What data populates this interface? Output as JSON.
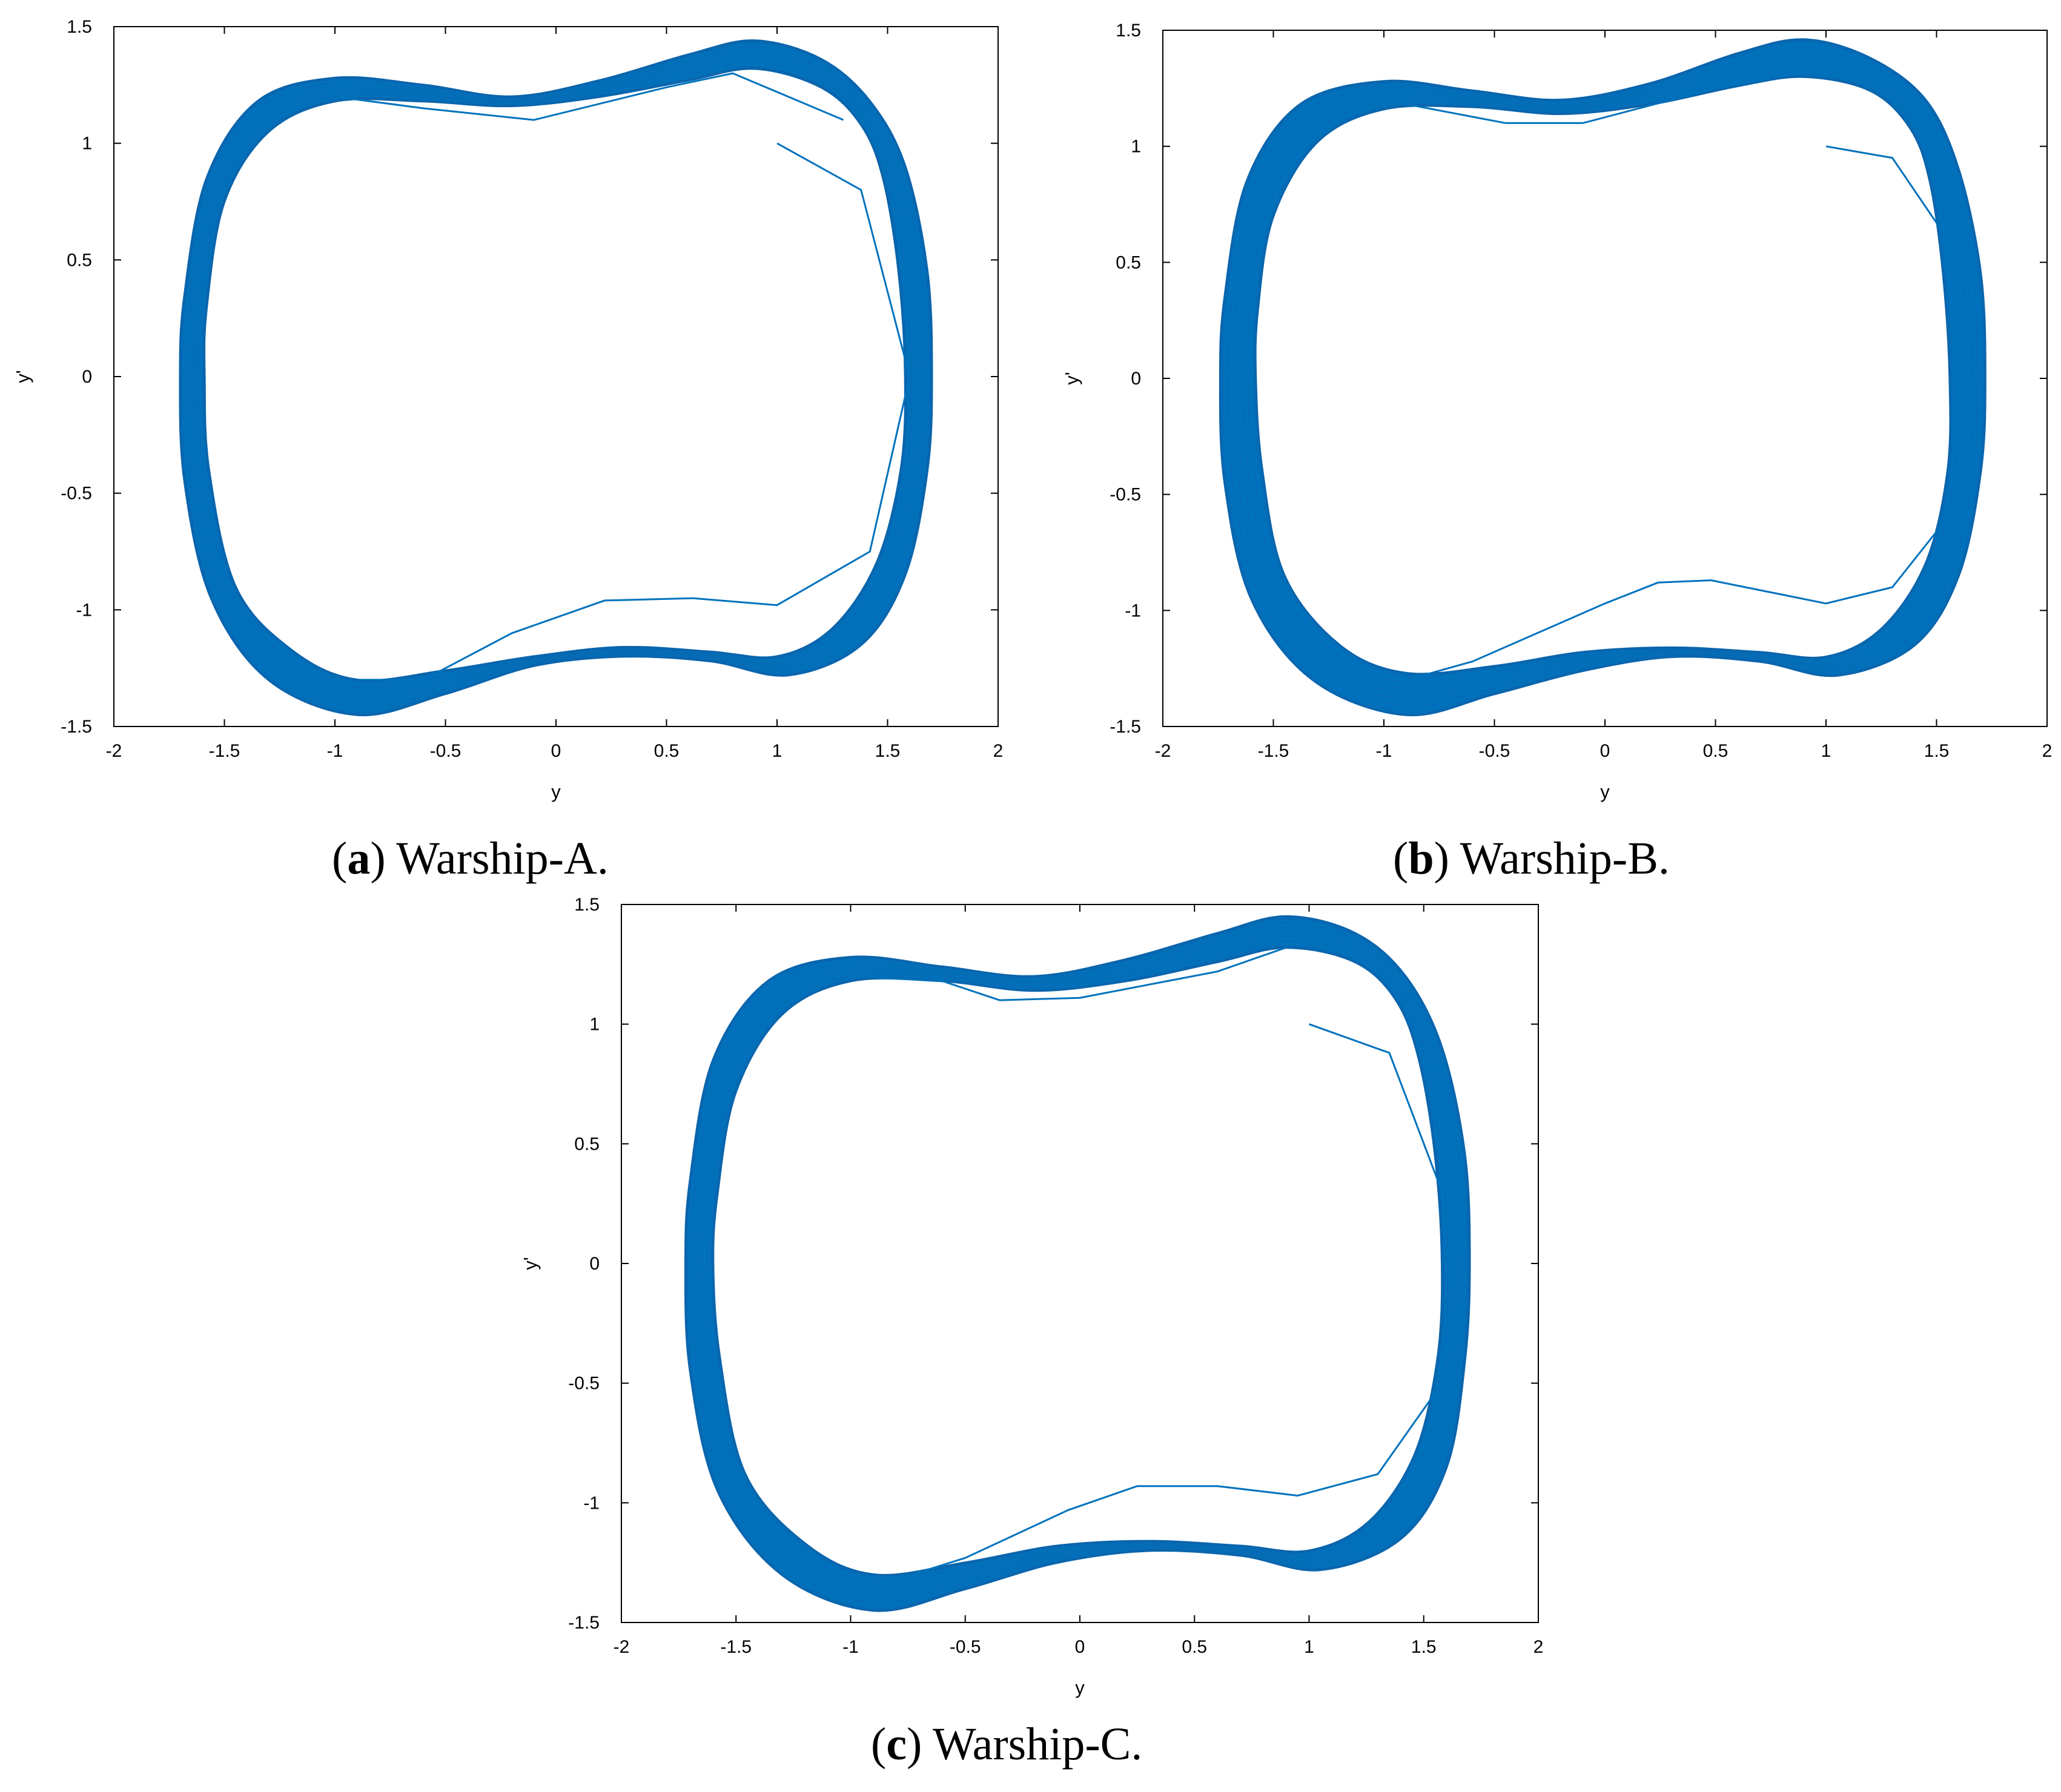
{
  "figures": [
    {
      "id": "a",
      "caption_letter": "a",
      "caption_text": "Warship-A.",
      "chart_data": {
        "type": "line",
        "title": "",
        "xlabel": "y",
        "ylabel": "y'",
        "xlim": [
          -2,
          2
        ],
        "ylim": [
          -1.5,
          1.5
        ],
        "xticks": [
          -2,
          -1.5,
          -1,
          -0.5,
          0,
          0.5,
          1,
          1.5,
          2
        ],
        "yticks": [
          -1.5,
          -1,
          -0.5,
          0,
          0.5,
          1,
          1.5
        ],
        "xtick_labels": [
          "-2",
          "-1.5",
          "-1",
          "-0.5",
          "0",
          "0.5",
          "1",
          "1.5",
          "2"
        ],
        "ytick_labels": [
          "-1.5",
          "-1",
          "-0.5",
          "0",
          "0.5",
          "1",
          "1.5"
        ],
        "grid": false,
        "color": "#0072bd",
        "limit_cycle": {
          "inner": [
            [
              1.58,
              0.0
            ],
            [
              1.55,
              0.45
            ],
            [
              1.48,
              0.85
            ],
            [
              1.38,
              1.08
            ],
            [
              1.2,
              1.24
            ],
            [
              0.9,
              1.32
            ],
            [
              0.6,
              1.27
            ],
            [
              0.2,
              1.2
            ],
            [
              -0.2,
              1.16
            ],
            [
              -0.6,
              1.18
            ],
            [
              -1.0,
              1.18
            ],
            [
              -1.3,
              1.05
            ],
            [
              -1.5,
              0.75
            ],
            [
              -1.58,
              0.3
            ],
            [
              -1.59,
              0.0
            ],
            [
              -1.57,
              -0.4
            ],
            [
              -1.45,
              -0.9
            ],
            [
              -1.2,
              -1.17
            ],
            [
              -0.9,
              -1.3
            ],
            [
              -0.5,
              -1.26
            ],
            [
              -0.1,
              -1.2
            ],
            [
              0.3,
              -1.16
            ],
            [
              0.7,
              -1.18
            ],
            [
              1.0,
              -1.2
            ],
            [
              1.25,
              -1.08
            ],
            [
              1.45,
              -0.8
            ],
            [
              1.56,
              -0.4
            ]
          ],
          "outer": [
            [
              1.7,
              0.0
            ],
            [
              1.68,
              0.45
            ],
            [
              1.58,
              0.9
            ],
            [
              1.42,
              1.18
            ],
            [
              1.2,
              1.36
            ],
            [
              0.9,
              1.44
            ],
            [
              0.6,
              1.38
            ],
            [
              0.2,
              1.27
            ],
            [
              -0.2,
              1.2
            ],
            [
              -0.6,
              1.25
            ],
            [
              -1.0,
              1.28
            ],
            [
              -1.35,
              1.18
            ],
            [
              -1.58,
              0.85
            ],
            [
              -1.68,
              0.35
            ],
            [
              -1.7,
              0.0
            ],
            [
              -1.68,
              -0.45
            ],
            [
              -1.56,
              -0.95
            ],
            [
              -1.3,
              -1.3
            ],
            [
              -0.9,
              -1.45
            ],
            [
              -0.5,
              -1.36
            ],
            [
              -0.1,
              -1.24
            ],
            [
              0.3,
              -1.2
            ],
            [
              0.7,
              -1.22
            ],
            [
              1.05,
              -1.28
            ],
            [
              1.38,
              -1.15
            ],
            [
              1.58,
              -0.85
            ],
            [
              1.68,
              -0.4
            ]
          ]
        },
        "transient": [
          [
            1.0,
            1.0
          ],
          [
            1.38,
            0.8
          ],
          [
            1.6,
            0.0
          ],
          [
            1.42,
            -0.75
          ],
          [
            1.0,
            -0.98
          ],
          [
            0.62,
            -0.95
          ],
          [
            0.22,
            -0.96
          ],
          [
            -0.2,
            -1.1
          ],
          [
            -0.6,
            -1.3
          ],
          [
            -0.9,
            -1.3
          ]
        ],
        "transient_upper": [
          [
            -1.0,
            1.2
          ],
          [
            -0.6,
            1.15
          ],
          [
            -0.1,
            1.1
          ],
          [
            0.5,
            1.24
          ],
          [
            0.8,
            1.3
          ],
          [
            1.3,
            1.1
          ]
        ]
      }
    },
    {
      "id": "b",
      "caption_letter": "b",
      "caption_text": "Warship-B.",
      "chart_data": {
        "type": "line",
        "title": "",
        "xlabel": "y",
        "ylabel": "y'",
        "xlim": [
          -2,
          2
        ],
        "ylim": [
          -1.5,
          1.5
        ],
        "xticks": [
          -2,
          -1.5,
          -1,
          -0.5,
          0,
          0.5,
          1,
          1.5,
          2
        ],
        "yticks": [
          -1.5,
          -1,
          -0.5,
          0,
          0.5,
          1,
          1.5
        ],
        "xtick_labels": [
          "-2",
          "-1.5",
          "-1",
          "-0.5",
          "0",
          "0.5",
          "1",
          "1.5",
          "2"
        ],
        "ytick_labels": [
          "-1.5",
          "-1",
          "-0.5",
          "0",
          "0.5",
          "1",
          "1.5"
        ],
        "grid": false,
        "color": "#0072bd",
        "limit_cycle": {
          "inner": [
            [
              1.56,
              0.0
            ],
            [
              1.53,
              0.45
            ],
            [
              1.47,
              0.85
            ],
            [
              1.38,
              1.08
            ],
            [
              1.2,
              1.24
            ],
            [
              0.9,
              1.3
            ],
            [
              0.6,
              1.26
            ],
            [
              0.2,
              1.18
            ],
            [
              -0.2,
              1.14
            ],
            [
              -0.6,
              1.17
            ],
            [
              -1.0,
              1.16
            ],
            [
              -1.3,
              1.02
            ],
            [
              -1.5,
              0.7
            ],
            [
              -1.57,
              0.3
            ],
            [
              -1.58,
              0.0
            ],
            [
              -1.55,
              -0.4
            ],
            [
              -1.45,
              -0.85
            ],
            [
              -1.2,
              -1.15
            ],
            [
              -0.9,
              -1.27
            ],
            [
              -0.5,
              -1.24
            ],
            [
              -0.1,
              -1.18
            ],
            [
              0.3,
              -1.16
            ],
            [
              0.7,
              -1.18
            ],
            [
              1.0,
              -1.2
            ],
            [
              1.25,
              -1.08
            ],
            [
              1.45,
              -0.8
            ],
            [
              1.55,
              -0.4
            ]
          ],
          "outer": [
            [
              1.72,
              0.0
            ],
            [
              1.7,
              0.45
            ],
            [
              1.6,
              0.9
            ],
            [
              1.45,
              1.2
            ],
            [
              1.2,
              1.38
            ],
            [
              0.9,
              1.46
            ],
            [
              0.6,
              1.4
            ],
            [
              0.2,
              1.27
            ],
            [
              -0.2,
              1.2
            ],
            [
              -0.6,
              1.24
            ],
            [
              -1.0,
              1.28
            ],
            [
              -1.38,
              1.18
            ],
            [
              -1.62,
              0.85
            ],
            [
              -1.72,
              0.35
            ],
            [
              -1.74,
              0.0
            ],
            [
              -1.72,
              -0.45
            ],
            [
              -1.6,
              -0.95
            ],
            [
              -1.32,
              -1.3
            ],
            [
              -0.9,
              -1.45
            ],
            [
              -0.5,
              -1.36
            ],
            [
              -0.1,
              -1.26
            ],
            [
              0.3,
              -1.2
            ],
            [
              0.7,
              -1.22
            ],
            [
              1.05,
              -1.28
            ],
            [
              1.4,
              -1.15
            ],
            [
              1.6,
              -0.85
            ],
            [
              1.7,
              -0.4
            ]
          ]
        },
        "transient": [
          [
            1.0,
            1.0
          ],
          [
            1.3,
            0.95
          ],
          [
            1.55,
            0.6
          ],
          [
            1.6,
            0.0
          ],
          [
            1.55,
            -0.6
          ],
          [
            1.3,
            -0.9
          ],
          [
            1.0,
            -0.97
          ],
          [
            0.48,
            -0.87
          ],
          [
            0.24,
            -0.88
          ],
          [
            0.0,
            -0.97
          ],
          [
            -0.6,
            -1.22
          ],
          [
            -0.9,
            -1.3
          ]
        ],
        "transient_upper": [
          [
            -1.0,
            1.2
          ],
          [
            -0.45,
            1.1
          ],
          [
            -0.1,
            1.1
          ],
          [
            0.5,
            1.25
          ],
          [
            0.9,
            1.32
          ]
        ]
      }
    },
    {
      "id": "c",
      "caption_letter": "c",
      "caption_text": "Warship-C.",
      "chart_data": {
        "type": "line",
        "title": "",
        "xlabel": "y",
        "ylabel": "y'",
        "xlim": [
          -2,
          2
        ],
        "ylim": [
          -1.5,
          1.5
        ],
        "xticks": [
          -2,
          -1.5,
          -1,
          -0.5,
          0,
          0.5,
          1,
          1.5,
          2
        ],
        "yticks": [
          -1.5,
          -1,
          -0.5,
          0,
          0.5,
          1,
          1.5
        ],
        "xtick_labels": [
          "-2",
          "-1.5",
          "-1",
          "-0.5",
          "0",
          "0.5",
          "1",
          "1.5",
          "2"
        ],
        "ytick_labels": [
          "-1.5",
          "-1",
          "-0.5",
          "0",
          "0.5",
          "1",
          "1.5"
        ],
        "grid": false,
        "color": "#0072bd",
        "limit_cycle": {
          "inner": [
            [
              1.58,
              0.0
            ],
            [
              1.55,
              0.45
            ],
            [
              1.48,
              0.85
            ],
            [
              1.38,
              1.1
            ],
            [
              1.2,
              1.26
            ],
            [
              0.9,
              1.32
            ],
            [
              0.6,
              1.26
            ],
            [
              0.2,
              1.18
            ],
            [
              -0.2,
              1.14
            ],
            [
              -0.6,
              1.18
            ],
            [
              -1.0,
              1.18
            ],
            [
              -1.3,
              1.04
            ],
            [
              -1.5,
              0.72
            ],
            [
              -1.58,
              0.3
            ],
            [
              -1.6,
              0.0
            ],
            [
              -1.57,
              -0.4
            ],
            [
              -1.46,
              -0.88
            ],
            [
              -1.2,
              -1.17
            ],
            [
              -0.9,
              -1.3
            ],
            [
              -0.5,
              -1.25
            ],
            [
              -0.1,
              -1.18
            ],
            [
              0.3,
              -1.16
            ],
            [
              0.7,
              -1.18
            ],
            [
              1.0,
              -1.2
            ],
            [
              1.26,
              -1.08
            ],
            [
              1.46,
              -0.8
            ],
            [
              1.56,
              -0.4
            ]
          ],
          "outer": [
            [
              1.7,
              0.0
            ],
            [
              1.68,
              0.45
            ],
            [
              1.58,
              0.9
            ],
            [
              1.42,
              1.2
            ],
            [
              1.2,
              1.38
            ],
            [
              0.9,
              1.45
            ],
            [
              0.6,
              1.38
            ],
            [
              0.2,
              1.27
            ],
            [
              -0.2,
              1.2
            ],
            [
              -0.6,
              1.24
            ],
            [
              -1.0,
              1.28
            ],
            [
              -1.36,
              1.18
            ],
            [
              -1.6,
              0.85
            ],
            [
              -1.7,
              0.35
            ],
            [
              -1.72,
              0.0
            ],
            [
              -1.7,
              -0.45
            ],
            [
              -1.58,
              -0.95
            ],
            [
              -1.3,
              -1.3
            ],
            [
              -0.9,
              -1.45
            ],
            [
              -0.5,
              -1.36
            ],
            [
              -0.1,
              -1.25
            ],
            [
              0.3,
              -1.2
            ],
            [
              0.7,
              -1.22
            ],
            [
              1.05,
              -1.28
            ],
            [
              1.4,
              -1.15
            ],
            [
              1.6,
              -0.85
            ],
            [
              1.68,
              -0.4
            ]
          ]
        },
        "transient": [
          [
            1.0,
            1.0
          ],
          [
            1.35,
            0.88
          ],
          [
            1.58,
            0.3
          ],
          [
            1.6,
            -0.1
          ],
          [
            1.58,
            -0.5
          ],
          [
            1.3,
            -0.88
          ],
          [
            0.95,
            -0.97
          ],
          [
            0.6,
            -0.93
          ],
          [
            0.25,
            -0.93
          ],
          [
            -0.05,
            -1.03
          ],
          [
            -0.5,
            -1.23
          ],
          [
            -0.9,
            -1.35
          ]
        ],
        "transient_upper": [
          [
            -1.0,
            1.2
          ],
          [
            -0.6,
            1.18
          ],
          [
            -0.35,
            1.1
          ],
          [
            0.0,
            1.11
          ],
          [
            0.6,
            1.22
          ],
          [
            0.9,
            1.32
          ]
        ]
      }
    }
  ]
}
